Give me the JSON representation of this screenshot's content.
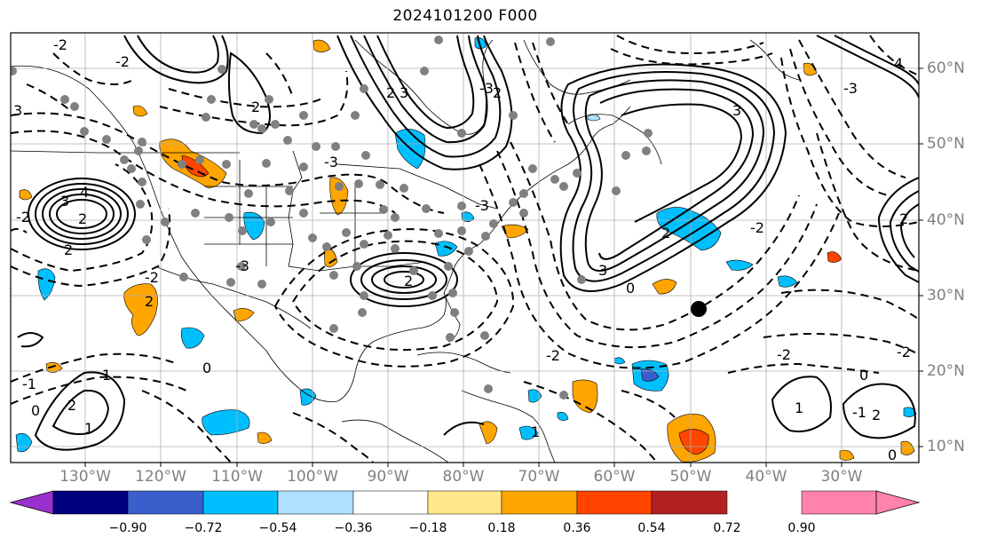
{
  "title": "2024101200 F000",
  "lon_labels": [
    "130°W",
    "120°W",
    "110°W",
    "100°W",
    "90°W",
    "80°W",
    "70°W",
    "60°W",
    "50°W",
    "40°W",
    "30°W"
  ],
  "lat_labels": [
    "60°N",
    "50°N",
    "40°N",
    "30°N",
    "20°N",
    "10°N"
  ],
  "colorbar": {
    "ticks": [
      "−0.90",
      "−0.72",
      "−0.54",
      "−0.36",
      "−0.18",
      "0.18",
      "0.36",
      "0.54",
      "0.72",
      "0.90"
    ],
    "colors": [
      "#9b30d0",
      "#00007f",
      "#3a5fcd",
      "#00bfff",
      "#aee0ff",
      "#ffffff",
      "#ffe88a",
      "#ffa500",
      "#ff4500",
      "#b22222",
      "#ff82ab"
    ]
  },
  "contour_labels": [
    "2",
    "3",
    "4",
    "2",
    "3",
    "2",
    "4",
    "-2",
    "3",
    "2",
    "-3",
    "-2",
    "-3",
    "2",
    "3",
    "2",
    "-2",
    "2",
    "-2",
    "0",
    "2",
    "-2",
    "2",
    "1",
    "-1",
    "0",
    "1",
    "0",
    "-1",
    "0",
    "1",
    "-2",
    "-3",
    "2",
    "-2",
    "1",
    "3",
    "0",
    "-3",
    "-2",
    "2",
    "-3"
  ],
  "colors": {
    "positive_anomaly": "#ffa500",
    "strong_positive": "#ff4500",
    "negative_anomaly": "#00bfff",
    "strong_negative": "#3a5fcd",
    "gray_marker": "#808080",
    "marker": "#000000",
    "contour": "#000000",
    "gridline": "#b0b0b0",
    "frame": "#000000"
  }
}
